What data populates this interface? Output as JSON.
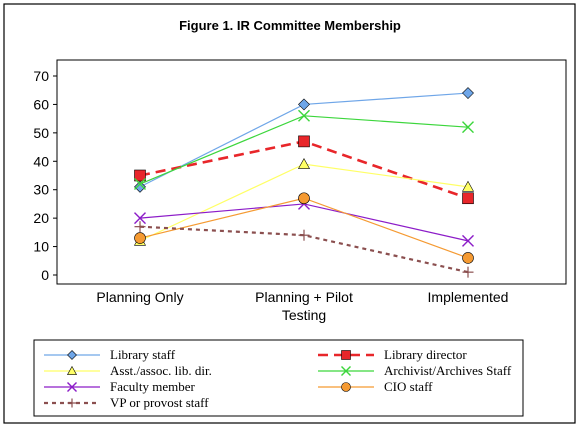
{
  "chart_data": {
    "type": "line",
    "title": "Figure 1. IR Committee Membership",
    "xlabel": "",
    "ylabel": "",
    "categories": [
      "Planning Only",
      "Planning + Pilot Testing",
      "Implemented"
    ],
    "ylim": [
      0,
      70
    ],
    "yticks": [
      0,
      10,
      20,
      30,
      40,
      50,
      60,
      70
    ],
    "grid": false,
    "legend_position": "bottom",
    "series": [
      {
        "name": "Library staff",
        "values": [
          31,
          60,
          64
        ],
        "color": "#6fa6e8",
        "marker": "diamond",
        "dash": "solid",
        "width": 1.2
      },
      {
        "name": "Library director",
        "values": [
          35,
          47,
          27
        ],
        "color": "#e8262a",
        "marker": "square",
        "dash": "dashed",
        "width": 2.6
      },
      {
        "name": "Asst./assoc. lib. dir.",
        "values": [
          12,
          39,
          31
        ],
        "color": "#ffff66",
        "marker": "triangle",
        "dash": "solid",
        "width": 1.2
      },
      {
        "name": "Archivist/Archives Staff",
        "values": [
          32,
          56,
          52
        ],
        "color": "#3cd63c",
        "marker": "x",
        "dash": "solid",
        "width": 1.2
      },
      {
        "name": "Faculty member",
        "values": [
          20,
          25,
          12
        ],
        "color": "#8c1cc8",
        "marker": "x",
        "dash": "solid",
        "width": 1.2
      },
      {
        "name": "CIO staff",
        "values": [
          13,
          27,
          6
        ],
        "color": "#f59a32",
        "marker": "circle",
        "dash": "solid",
        "width": 1.2
      },
      {
        "name": "VP or provost staff",
        "values": [
          17,
          14,
          1
        ],
        "color": "#8b4f4f",
        "marker": "plus",
        "dash": "dotted",
        "width": 2.2
      }
    ]
  }
}
